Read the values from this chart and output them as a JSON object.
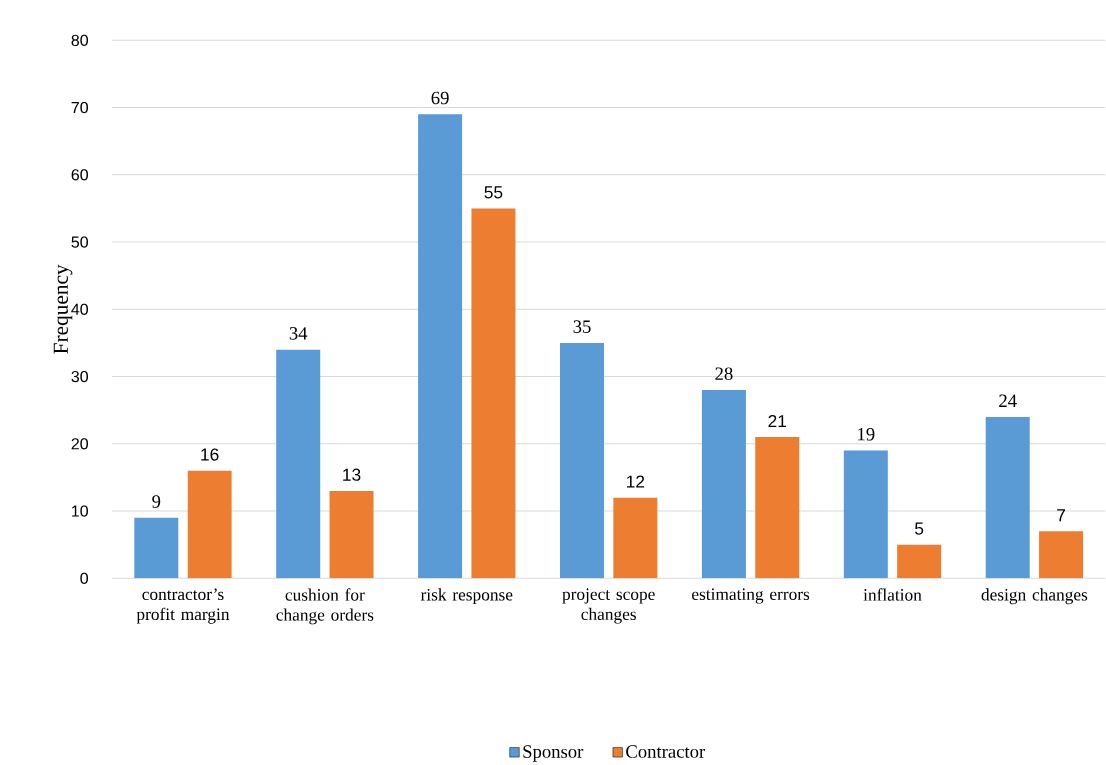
{
  "chart_data": {
    "type": "bar",
    "ylabel": "Frequency",
    "categories": [
      "contractor’s profit margin",
      "cushion for change orders",
      "risk response",
      "project scope changes",
      "estimating errors",
      "inflation",
      "design changes"
    ],
    "series": [
      {
        "name": "Sponsor",
        "color": "#5b9bd5",
        "values": [
          9,
          34,
          69,
          35,
          28,
          19,
          24
        ]
      },
      {
        "name": "Contractor",
        "color": "#ed7d31",
        "values": [
          16,
          13,
          55,
          12,
          21,
          5,
          7
        ]
      }
    ],
    "ylim": [
      0,
      80
    ],
    "yticks": [
      0,
      10,
      20,
      30,
      40,
      50,
      60,
      70,
      80
    ],
    "grid": "y",
    "legend": "bottom",
    "data_labels": true
  }
}
